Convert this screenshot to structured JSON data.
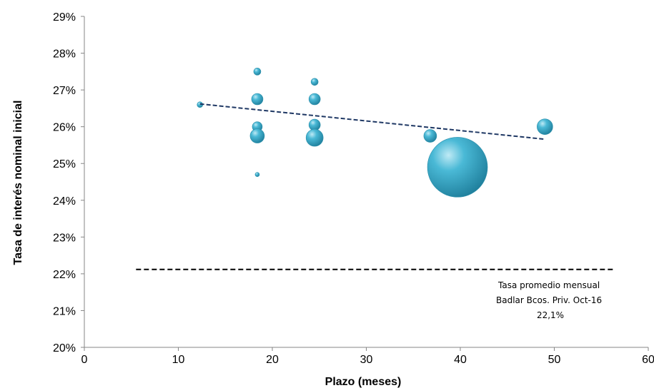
{
  "chart_data": {
    "type": "scatter",
    "xlabel": "Plazo (meses)",
    "ylabel": "Tasa de interés nominal inicial",
    "xlim": [
      0,
      60
    ],
    "ylim": [
      20,
      29
    ],
    "x_ticks": [
      "0",
      "10",
      "20",
      "30",
      "40",
      "50",
      "60"
    ],
    "y_ticks": [
      "20%",
      "21%",
      "22%",
      "23%",
      "24%",
      "25%",
      "26%",
      "27%",
      "28%",
      "29%"
    ],
    "grid": false,
    "bubble_color": "#3aa9c9",
    "points": [
      {
        "x": 12.3,
        "y": 26.6,
        "r": 4
      },
      {
        "x": 18.4,
        "y": 27.5,
        "r": 5
      },
      {
        "x": 18.4,
        "y": 26.75,
        "r": 8
      },
      {
        "x": 18.4,
        "y": 26.0,
        "r": 7
      },
      {
        "x": 18.4,
        "y": 25.75,
        "r": 10
      },
      {
        "x": 18.4,
        "y": 24.7,
        "r": 3
      },
      {
        "x": 24.5,
        "y": 27.22,
        "r": 5
      },
      {
        "x": 24.5,
        "y": 26.75,
        "r": 8
      },
      {
        "x": 24.5,
        "y": 26.05,
        "r": 8
      },
      {
        "x": 24.5,
        "y": 25.7,
        "r": 12
      },
      {
        "x": 36.8,
        "y": 25.75,
        "r": 9
      },
      {
        "x": 39.7,
        "y": 24.9,
        "r": 42
      },
      {
        "x": 49.0,
        "y": 26.0,
        "r": 11
      }
    ],
    "trendline": {
      "x": [
        12.3,
        49.0
      ],
      "y": [
        26.62,
        25.66
      ],
      "style": "dashed",
      "color": "#1f3864"
    },
    "reference_line": {
      "y": 22.12,
      "x": [
        5.5,
        56.5
      ],
      "style": "dashed",
      "color": "#000000"
    },
    "annotation": {
      "lines": [
        "Tasa promedio mensual",
        "Badlar Bcos. Priv. Oct-16",
        "22,1%"
      ]
    }
  }
}
